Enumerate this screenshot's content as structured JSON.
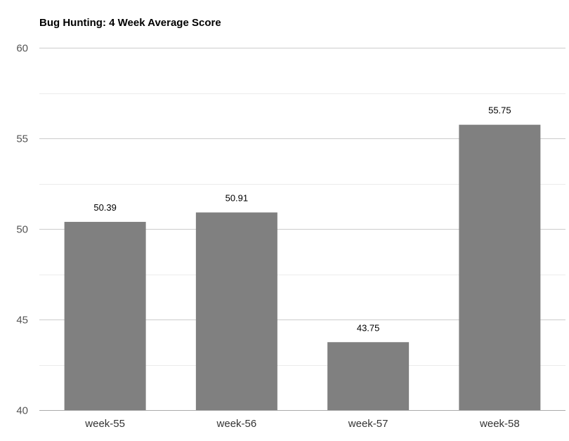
{
  "chart_data": {
    "type": "bar",
    "title": "Bug Hunting: 4 Week Average Score",
    "categories": [
      "week-55",
      "week-56",
      "week-57",
      "week-58"
    ],
    "values": [
      50.39,
      50.91,
      43.75,
      55.75
    ],
    "data_labels": [
      "50.39",
      "50.91",
      "43.75",
      "55.75"
    ],
    "ylim": [
      40,
      60
    ],
    "yticks": [
      40,
      45,
      50,
      55,
      60
    ],
    "minor_gridlines": [
      42.5,
      47.5,
      52.5,
      57.5
    ],
    "grid": true,
    "legend": "none",
    "xlabel": "",
    "ylabel": "",
    "colors": {
      "bar": "#808080",
      "major_grid": "#cccccc",
      "minor_grid": "#ebebeb",
      "baseline": "#aaaaaa"
    }
  }
}
